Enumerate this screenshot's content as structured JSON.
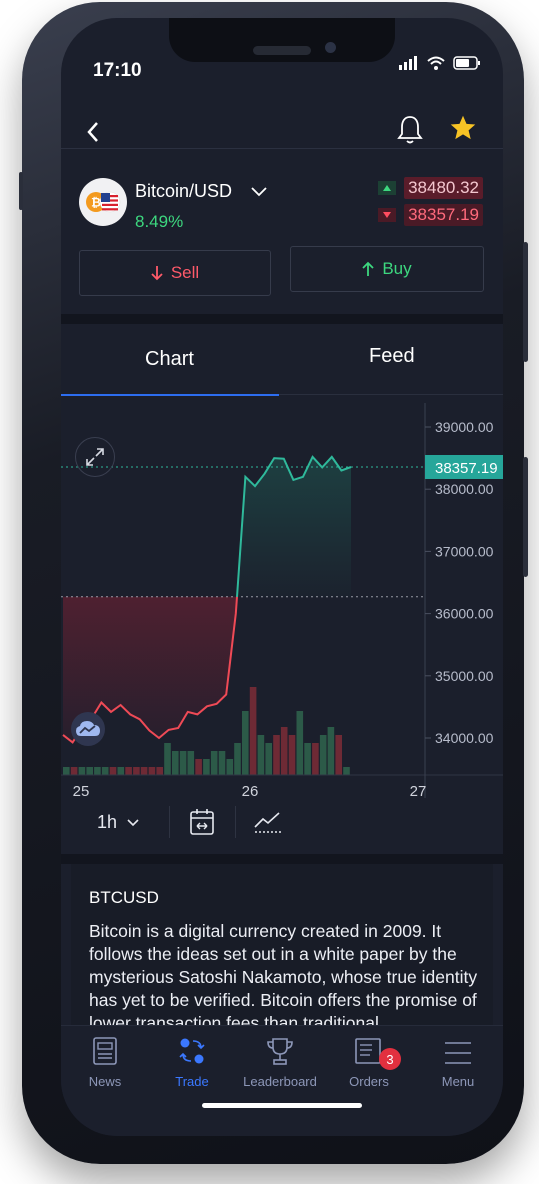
{
  "status_bar": {
    "time": "17:10"
  },
  "instrument": {
    "pair": "Bitcoin/USD",
    "change": "8.49%",
    "ask": "38480.32",
    "bid": "38357.19"
  },
  "actions": {
    "sell_label": "Sell",
    "buy_label": "Buy"
  },
  "tabs": [
    {
      "label": "Chart",
      "active": true
    },
    {
      "label": "Feed",
      "active": false
    }
  ],
  "chart_data": {
    "type": "line",
    "x_ticks": [
      "25",
      "26",
      "27"
    ],
    "y_ticks": [
      "39000.00",
      "38000.00",
      "37000.00",
      "36000.00",
      "35000.00",
      "34000.00"
    ],
    "current_price_label": "38357.19",
    "ylim": [
      33400,
      39200
    ],
    "baseline": 36270,
    "price": [
      34050,
      33930,
      34170,
      34320,
      34570,
      34420,
      34530,
      34380,
      34300,
      34120,
      34000,
      34130,
      34160,
      34420,
      34380,
      34510,
      34550,
      34700,
      36000,
      38200,
      38050,
      38250,
      38500,
      38490,
      38150,
      38200,
      38520,
      38350,
      38520,
      38300,
      38357
    ],
    "volume": [
      1,
      1,
      1,
      1,
      1,
      1,
      1,
      1,
      1,
      1,
      1,
      1,
      1,
      4,
      3,
      3,
      3,
      2,
      2,
      3,
      3,
      2,
      4,
      8,
      11,
      5,
      4,
      5,
      6,
      5,
      8,
      4,
      4,
      5,
      6,
      5,
      1
    ],
    "colors": {
      "up": "#2fb99b",
      "down": "#ef4a56",
      "current_price_bg": "#26a69a"
    }
  },
  "toolbar": {
    "interval": "1h"
  },
  "info": {
    "title": "BTCUSD",
    "description": "Bitcoin is a digital currency created in 2009. It follows the ideas set out in a white paper by the mysterious Satoshi Nakamoto, whose true identity has yet to be verified. Bitcoin offers the promise of lower transaction fees than traditional"
  },
  "nav": {
    "items": [
      {
        "label": "News",
        "icon": "news-icon"
      },
      {
        "label": "Trade",
        "icon": "trade-icon",
        "active": true
      },
      {
        "label": "Leaderboard",
        "icon": "trophy-icon"
      },
      {
        "label": "Orders",
        "icon": "orders-icon",
        "badge": "3"
      },
      {
        "label": "Menu",
        "icon": "menu-icon"
      }
    ]
  }
}
